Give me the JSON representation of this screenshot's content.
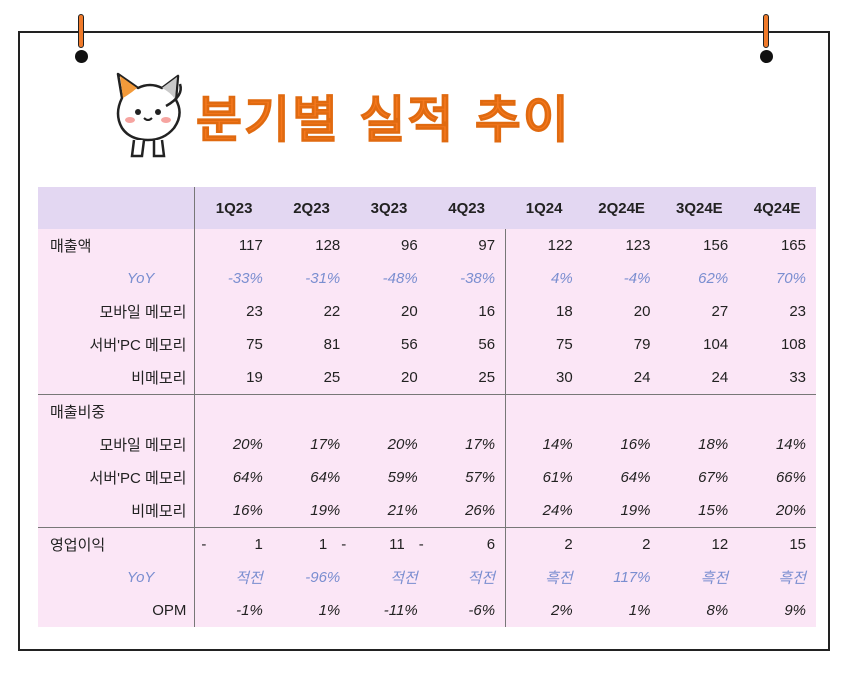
{
  "title": "분기별 실적 추이",
  "columns": [
    "1Q23",
    "2Q23",
    "3Q23",
    "4Q23",
    "1Q24",
    "2Q24E",
    "3Q24E",
    "4Q24E"
  ],
  "rows": [
    {
      "label": "매출액",
      "values": [
        "117",
        "128",
        "96",
        "97",
        "122",
        "123",
        "156",
        "165"
      ]
    },
    {
      "label": "YoY",
      "values": [
        "-33%",
        "-31%",
        "-48%",
        "-38%",
        "4%",
        "-4%",
        "62%",
        "70%"
      ]
    },
    {
      "label": "모바일 메모리",
      "values": [
        "23",
        "22",
        "20",
        "16",
        "18",
        "20",
        "27",
        "23"
      ]
    },
    {
      "label": "서버'PC 메모리",
      "values": [
        "75",
        "81",
        "56",
        "56",
        "75",
        "79",
        "104",
        "108"
      ]
    },
    {
      "label": "비메모리",
      "values": [
        "19",
        "25",
        "20",
        "25",
        "30",
        "24",
        "24",
        "33"
      ]
    },
    {
      "label": "매출비중",
      "values": [
        "",
        "",
        "",
        "",
        "",
        "",
        "",
        ""
      ]
    },
    {
      "label": "모바일 메모리",
      "values": [
        "20%",
        "17%",
        "20%",
        "17%",
        "14%",
        "16%",
        "18%",
        "14%"
      ]
    },
    {
      "label": "서버'PC 메모리",
      "values": [
        "64%",
        "64%",
        "59%",
        "57%",
        "61%",
        "64%",
        "67%",
        "66%"
      ]
    },
    {
      "label": "비메모리",
      "values": [
        "16%",
        "19%",
        "21%",
        "26%",
        "24%",
        "19%",
        "15%",
        "20%"
      ]
    },
    {
      "label": "영업이익",
      "values": [
        "1",
        "1",
        "11",
        "6",
        "2",
        "2",
        "12",
        "15"
      ]
    },
    {
      "label": "YoY",
      "values": [
        "적전",
        "-96%",
        "적전",
        "적전",
        "흑전",
        "117%",
        "흑전",
        "흑전"
      ]
    },
    {
      "label": "OPM",
      "values": [
        "-1%",
        "1%",
        "-11%",
        "-6%",
        "2%",
        "1%",
        "8%",
        "9%"
      ]
    }
  ],
  "dashes": [
    "-",
    "-",
    "-"
  ]
}
